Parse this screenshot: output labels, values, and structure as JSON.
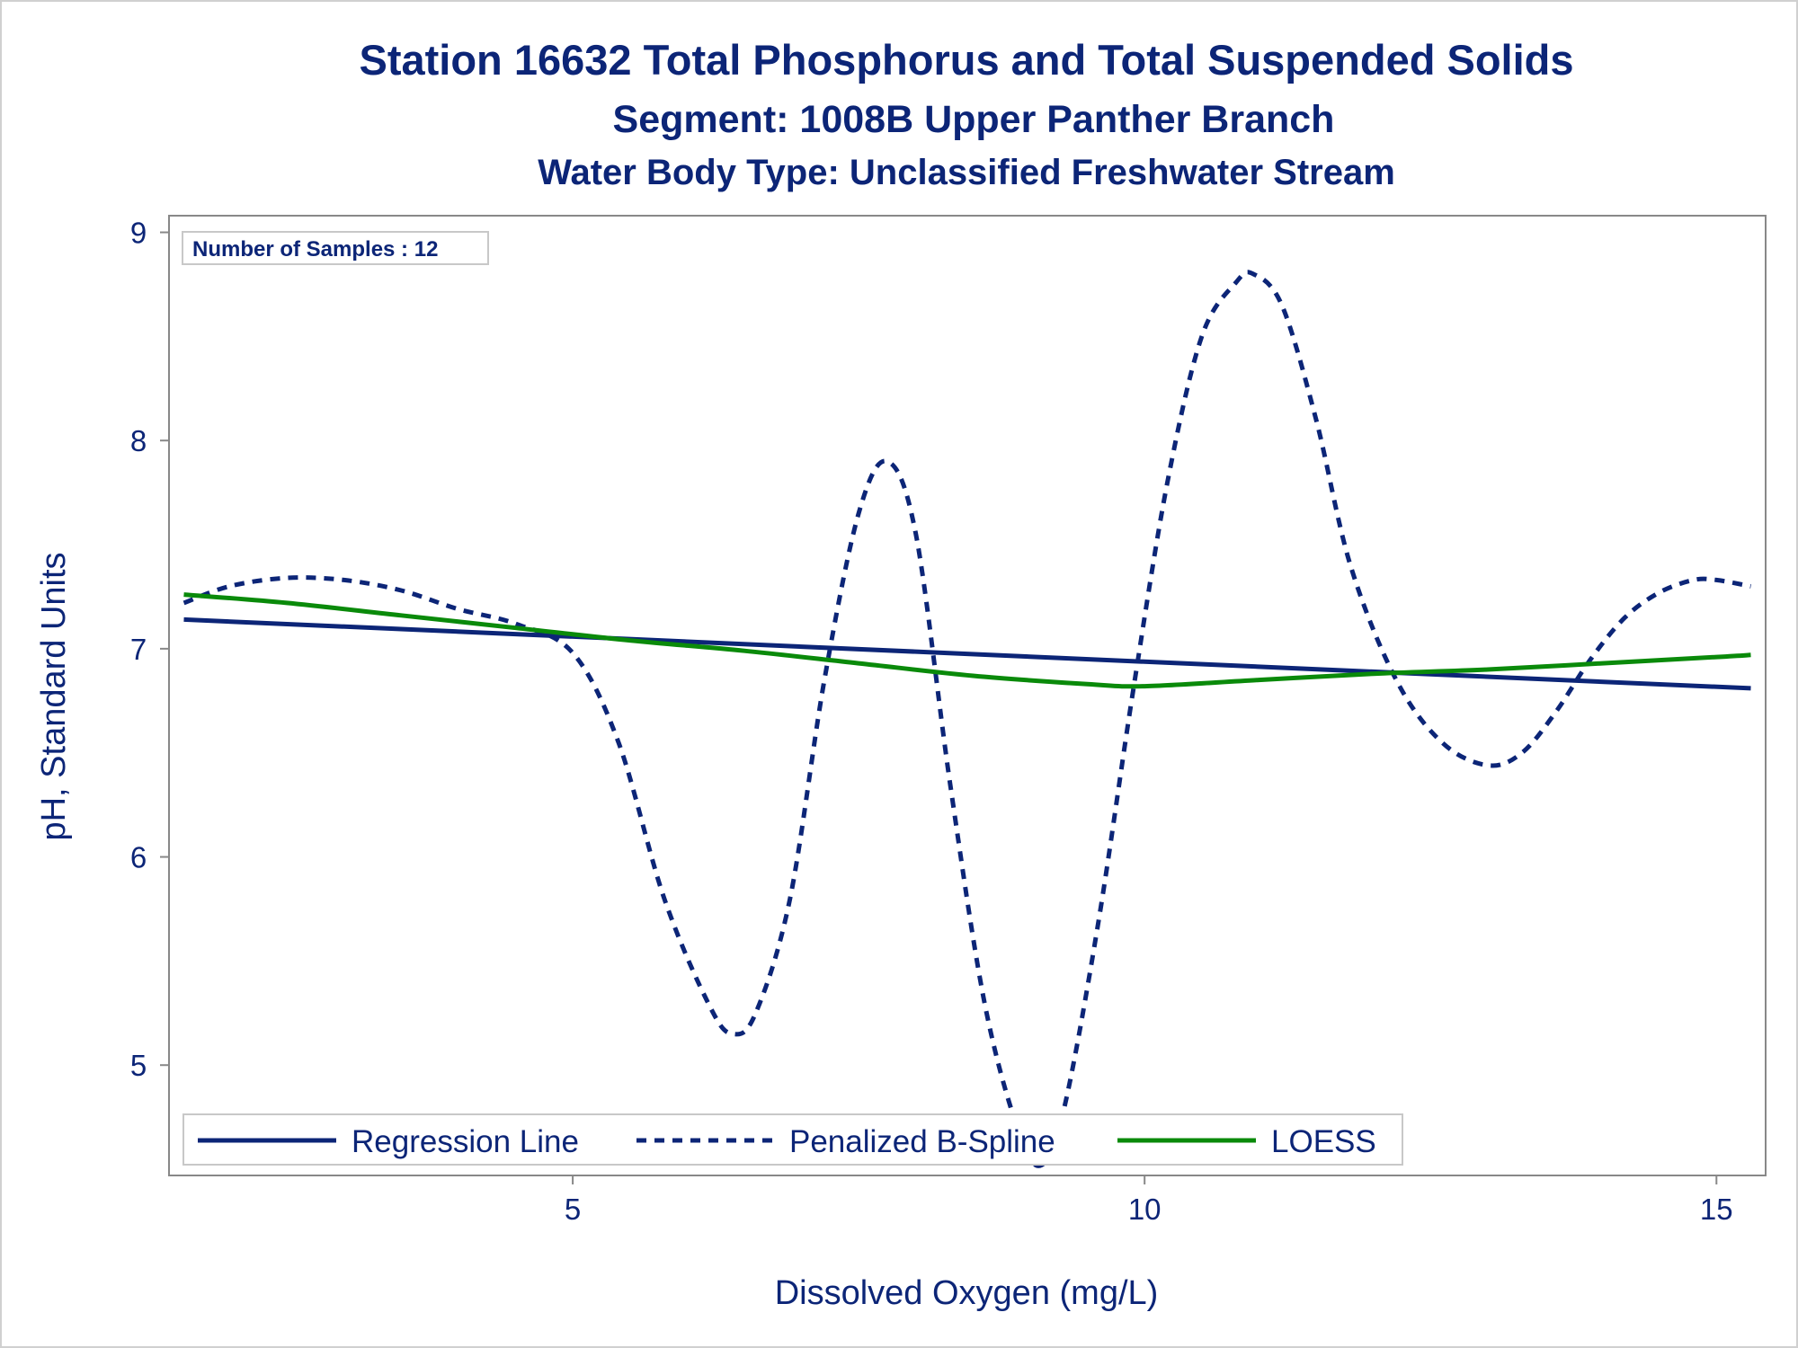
{
  "colors": {
    "text": "#0c2577",
    "regression": "#0c2577",
    "spline": "#0c2577",
    "loess": "#0a8a0a",
    "frame": "#888888",
    "legend_border": "#c8c8c8"
  },
  "chart_data": {
    "type": "line",
    "title": "Station 16632  Total Phosphorus and Total Suspended Solids",
    "subtitle": "Segment: 1008B  Upper Panther Branch",
    "subtitle2": "Water Body Type: Unclassified Freshwater Stream",
    "xlabel": "Dissolved Oxygen (mg/L)",
    "ylabel": "pH, Standard Units",
    "xlim": [
      1.47,
      15.43
    ],
    "ylim": [
      4.47,
      9.08
    ],
    "xticks": [
      5,
      10,
      15
    ],
    "yticks": [
      5,
      6,
      7,
      8,
      9
    ],
    "inset_label": "Number of Samples : 12",
    "legend_position": "bottom-left",
    "series": [
      {
        "name": "Regression Line",
        "style": "solid",
        "x": [
          1.6,
          15.3
        ],
        "y": [
          7.14,
          6.81
        ]
      },
      {
        "name": "Penalized B-Spline",
        "style": "dashed",
        "x": [
          1.6,
          2.0,
          2.5,
          3.0,
          3.5,
          4.0,
          4.5,
          5.0,
          5.4,
          5.8,
          6.2,
          6.4,
          6.6,
          6.9,
          7.2,
          7.5,
          7.75,
          8.0,
          8.3,
          8.6,
          8.9,
          9.1,
          9.3,
          9.6,
          9.9,
          10.2,
          10.5,
          10.8,
          10.95,
          11.2,
          11.5,
          11.8,
          12.2,
          12.6,
          13.0,
          13.3,
          13.6,
          13.9,
          14.2,
          14.5,
          14.8,
          15.0,
          15.3
        ],
        "y": [
          7.22,
          7.3,
          7.34,
          7.33,
          7.28,
          7.19,
          7.12,
          6.98,
          6.55,
          5.8,
          5.28,
          5.15,
          5.25,
          5.8,
          6.85,
          7.65,
          7.9,
          7.55,
          6.35,
          5.3,
          4.68,
          4.52,
          4.8,
          5.7,
          6.8,
          7.8,
          8.5,
          8.76,
          8.8,
          8.65,
          8.1,
          7.4,
          6.85,
          6.55,
          6.44,
          6.5,
          6.7,
          6.95,
          7.15,
          7.27,
          7.33,
          7.33,
          7.3
        ]
      },
      {
        "name": "LOESS",
        "style": "solid",
        "x": [
          1.6,
          2.5,
          3.5,
          4.5,
          5.5,
          6.5,
          7.5,
          8.5,
          9.5,
          10.0,
          11.0,
          12.0,
          13.0,
          14.0,
          15.0,
          15.3
        ],
        "y": [
          7.26,
          7.22,
          7.16,
          7.1,
          7.04,
          6.99,
          6.93,
          6.87,
          6.83,
          6.82,
          6.85,
          6.88,
          6.9,
          6.93,
          6.96,
          6.97
        ]
      }
    ]
  }
}
